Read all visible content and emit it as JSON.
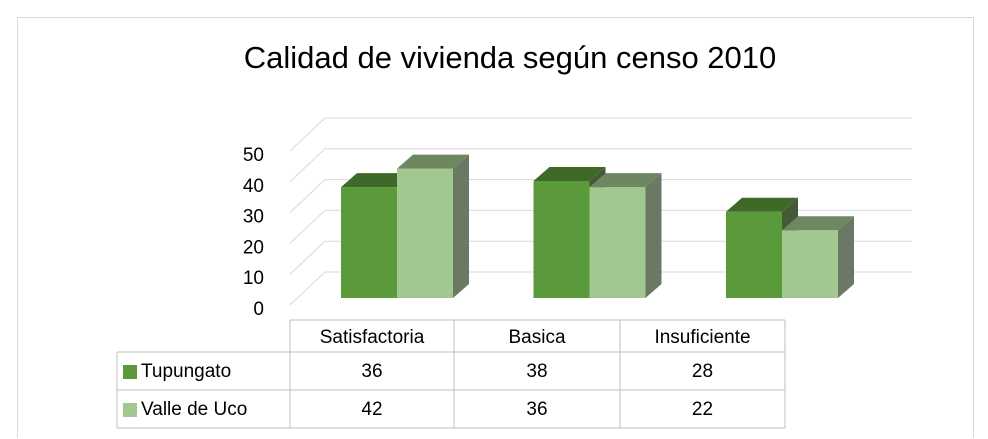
{
  "chart_data": {
    "type": "bar",
    "title": "Calidad de vivienda según censo 2010",
    "categories": [
      "Satisfactoria",
      "Basica",
      "Insuficiente"
    ],
    "series": [
      {
        "name": "Tupungato",
        "color": "#5b9a3b",
        "values": [
          36,
          38,
          28
        ]
      },
      {
        "name": "Valle de Uco",
        "color": "#a2c78f",
        "values": [
          42,
          36,
          22
        ]
      }
    ],
    "ylim": [
      0,
      50
    ],
    "yticks": [
      0,
      10,
      20,
      30,
      40,
      50
    ],
    "grid": true
  }
}
